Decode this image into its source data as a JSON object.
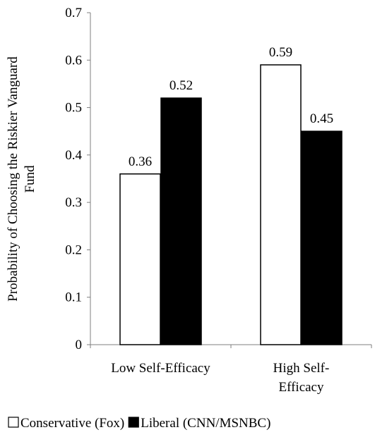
{
  "chart_data": {
    "type": "bar",
    "categories": [
      [
        "Low Self-Efficacy"
      ],
      [
        "High Self-",
        "Efficacy"
      ]
    ],
    "series": [
      {
        "name": "Conservative (Fox)",
        "values": [
          0.36,
          0.59
        ],
        "fill": "#ffffff",
        "stroke": "#000000"
      },
      {
        "name": "Liberal (CNN/MSNBC)",
        "values": [
          0.52,
          0.45
        ],
        "fill": "#000000",
        "stroke": "#000000"
      }
    ],
    "data_labels": [
      [
        "0.36",
        "0.59"
      ],
      [
        "0.52",
        "0.45"
      ]
    ],
    "ylabel_lines": [
      "Probability of Choosing the Riskier Vanguard",
      "Fund"
    ],
    "xlabel": "",
    "ylim": [
      0,
      0.7
    ],
    "yticks": [
      "0",
      "0.1",
      "0.2",
      "0.3",
      "0.4",
      "0.5",
      "0.6",
      "0.7"
    ],
    "grid": false,
    "legend_position": "bottom"
  }
}
